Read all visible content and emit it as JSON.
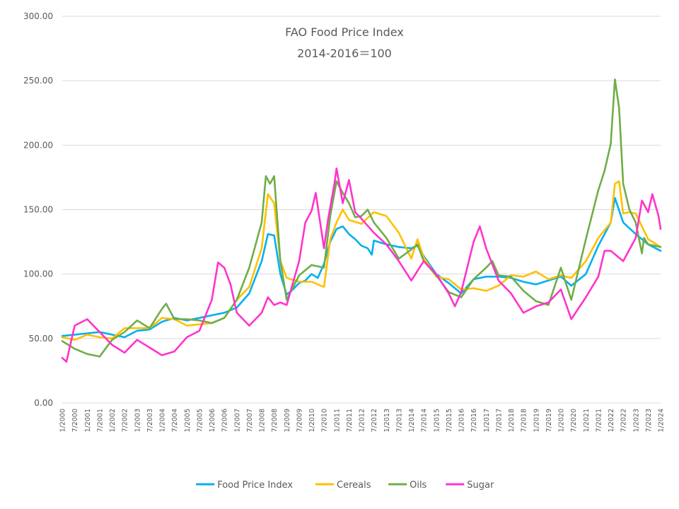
{
  "chart_data": {
    "type": "line",
    "title": "FAO Food Price Index",
    "subtitle": "2014-2016＝100",
    "xlabel": "",
    "ylabel": "",
    "ylim": [
      0,
      300
    ],
    "yticks": [
      "0.00",
      "50.00",
      "100.00",
      "150.00",
      "200.00",
      "250.00",
      "300.00"
    ],
    "grid": true,
    "legend": "bottom",
    "x_start": "1/2000",
    "x_end": "1/2024",
    "x_tick_labels": [
      "1/2000",
      "7/2000",
      "1/2001",
      "7/2001",
      "1/2002",
      "7/2002",
      "1/2003",
      "7/2003",
      "1/2004",
      "7/2004",
      "1/2005",
      "7/2005",
      "1/2006",
      "7/2006",
      "1/2007",
      "7/2007",
      "1/2008",
      "7/2008",
      "1/2009",
      "7/2009",
      "1/2010",
      "7/2010",
      "1/2011",
      "7/2011",
      "1/2012",
      "7/2012",
      "1/2013",
      "7/2013",
      "1/2014",
      "7/2014",
      "1/2015",
      "7/2015",
      "1/2016",
      "7/2016",
      "1/2017",
      "7/2017",
      "1/2018",
      "7/2018",
      "1/2019",
      "7/2019",
      "1/2020",
      "7/2020",
      "1/2021",
      "7/2021",
      "1/2022",
      "7/2022",
      "1/2023",
      "7/2023",
      "1/2024"
    ],
    "series": [
      {
        "name": "Food Price Index",
        "color": "#00b0f0",
        "points": [
          [
            "1/2000",
            52
          ],
          [
            "7/2000",
            53
          ],
          [
            "1/2001",
            54
          ],
          [
            "7/2001",
            55
          ],
          [
            "1/2002",
            53
          ],
          [
            "7/2002",
            51
          ],
          [
            "1/2003",
            56
          ],
          [
            "7/2003",
            57
          ],
          [
            "1/2004",
            63
          ],
          [
            "7/2004",
            66
          ],
          [
            "1/2005",
            64
          ],
          [
            "7/2005",
            66
          ],
          [
            "1/2006",
            68
          ],
          [
            "7/2006",
            70
          ],
          [
            "1/2007",
            74
          ],
          [
            "7/2007",
            85
          ],
          [
            "1/2008",
            110
          ],
          [
            "4/2008",
            131
          ],
          [
            "7/2008",
            130
          ],
          [
            "10/2008",
            100
          ],
          [
            "1/2009",
            84
          ],
          [
            "4/2009",
            88
          ],
          [
            "7/2009",
            93
          ],
          [
            "10/2009",
            95
          ],
          [
            "1/2010",
            100
          ],
          [
            "4/2010",
            97
          ],
          [
            "7/2010",
            108
          ],
          [
            "10/2010",
            125
          ],
          [
            "1/2011",
            135
          ],
          [
            "4/2011",
            137
          ],
          [
            "7/2011",
            131
          ],
          [
            "10/2011",
            127
          ],
          [
            "1/2012",
            122
          ],
          [
            "4/2012",
            120
          ],
          [
            "6/2012",
            115
          ],
          [
            "7/2012",
            126
          ],
          [
            "1/2013",
            123
          ],
          [
            "7/2013",
            121
          ],
          [
            "1/2014",
            120
          ],
          [
            "4/2014",
            122
          ],
          [
            "7/2014",
            114
          ],
          [
            "1/2015",
            100
          ],
          [
            "7/2015",
            93
          ],
          [
            "1/2016",
            85
          ],
          [
            "7/2016",
            96
          ],
          [
            "1/2017",
            98
          ],
          [
            "7/2017",
            98
          ],
          [
            "1/2018",
            97
          ],
          [
            "7/2018",
            94
          ],
          [
            "1/2019",
            92
          ],
          [
            "7/2019",
            95
          ],
          [
            "1/2020",
            98
          ],
          [
            "6/2020",
            91
          ],
          [
            "1/2021",
            100
          ],
          [
            "7/2021",
            122
          ],
          [
            "1/2022",
            140
          ],
          [
            "3/2022",
            159
          ],
          [
            "7/2022",
            140
          ],
          [
            "1/2023",
            131
          ],
          [
            "7/2023",
            123
          ],
          [
            "1/2024",
            118
          ]
        ]
      },
      {
        "name": "Cereals",
        "color": "#ffc000",
        "points": [
          [
            "1/2000",
            51
          ],
          [
            "7/2000",
            49
          ],
          [
            "1/2001",
            53
          ],
          [
            "7/2001",
            51
          ],
          [
            "1/2002",
            50
          ],
          [
            "7/2002",
            58
          ],
          [
            "1/2003",
            58
          ],
          [
            "7/2003",
            58
          ],
          [
            "1/2004",
            66
          ],
          [
            "7/2004",
            65
          ],
          [
            "1/2005",
            60
          ],
          [
            "7/2005",
            61
          ],
          [
            "1/2006",
            62
          ],
          [
            "7/2006",
            66
          ],
          [
            "1/2007",
            80
          ],
          [
            "7/2007",
            90
          ],
          [
            "1/2008",
            120
          ],
          [
            "4/2008",
            162
          ],
          [
            "7/2008",
            155
          ],
          [
            "10/2008",
            110
          ],
          [
            "1/2009",
            97
          ],
          [
            "7/2009",
            94
          ],
          [
            "1/2010",
            94
          ],
          [
            "7/2010",
            90
          ],
          [
            "10/2010",
            127
          ],
          [
            "1/2011",
            140
          ],
          [
            "4/2011",
            150
          ],
          [
            "7/2011",
            142
          ],
          [
            "1/2012",
            139
          ],
          [
            "7/2012",
            148
          ],
          [
            "1/2013",
            145
          ],
          [
            "7/2013",
            132
          ],
          [
            "1/2014",
            112
          ],
          [
            "4/2014",
            127
          ],
          [
            "7/2014",
            113
          ],
          [
            "1/2015",
            98
          ],
          [
            "7/2015",
            96
          ],
          [
            "1/2016",
            88
          ],
          [
            "7/2016",
            89
          ],
          [
            "1/2017",
            87
          ],
          [
            "7/2017",
            91
          ],
          [
            "1/2018",
            99
          ],
          [
            "7/2018",
            98
          ],
          [
            "1/2019",
            102
          ],
          [
            "7/2019",
            96
          ],
          [
            "1/2020",
            99
          ],
          [
            "6/2020",
            97
          ],
          [
            "1/2021",
            110
          ],
          [
            "7/2021",
            128
          ],
          [
            "1/2022",
            140
          ],
          [
            "3/2022",
            170
          ],
          [
            "5/2022",
            172
          ],
          [
            "7/2022",
            147
          ],
          [
            "10/2022",
            148
          ],
          [
            "1/2023",
            147
          ],
          [
            "7/2023",
            127
          ],
          [
            "1/2024",
            121
          ]
        ]
      },
      {
        "name": "Oils",
        "color": "#70ad47",
        "points": [
          [
            "1/2000",
            48
          ],
          [
            "7/2000",
            42
          ],
          [
            "1/2001",
            38
          ],
          [
            "7/2001",
            36
          ],
          [
            "1/2002",
            49
          ],
          [
            "7/2002",
            55
          ],
          [
            "1/2003",
            64
          ],
          [
            "7/2003",
            58
          ],
          [
            "1/2004",
            73
          ],
          [
            "3/2004",
            77
          ],
          [
            "7/2004",
            65
          ],
          [
            "1/2005",
            65
          ],
          [
            "7/2005",
            64
          ],
          [
            "1/2006",
            62
          ],
          [
            "7/2006",
            66
          ],
          [
            "1/2007",
            80
          ],
          [
            "7/2007",
            105
          ],
          [
            "1/2008",
            140
          ],
          [
            "3/2008",
            176
          ],
          [
            "5/2008",
            170
          ],
          [
            "7/2008",
            176
          ],
          [
            "10/2008",
            110
          ],
          [
            "1/2009",
            80
          ],
          [
            "7/2009",
            99
          ],
          [
            "1/2010",
            107
          ],
          [
            "7/2010",
            105
          ],
          [
            "10/2010",
            145
          ],
          [
            "1/2011",
            172
          ],
          [
            "4/2011",
            163
          ],
          [
            "7/2011",
            155
          ],
          [
            "10/2011",
            144
          ],
          [
            "1/2012",
            145
          ],
          [
            "4/2012",
            150
          ],
          [
            "7/2012",
            140
          ],
          [
            "1/2013",
            128
          ],
          [
            "7/2013",
            112
          ],
          [
            "1/2014",
            119
          ],
          [
            "4/2014",
            123
          ],
          [
            "7/2014",
            110
          ],
          [
            "1/2015",
            99
          ],
          [
            "7/2015",
            86
          ],
          [
            "1/2016",
            82
          ],
          [
            "7/2016",
            96
          ],
          [
            "1/2017",
            105
          ],
          [
            "4/2017",
            110
          ],
          [
            "7/2017",
            99
          ],
          [
            "1/2018",
            98
          ],
          [
            "7/2018",
            87
          ],
          [
            "1/2019",
            79
          ],
          [
            "7/2019",
            76
          ],
          [
            "1/2020",
            105
          ],
          [
            "6/2020",
            80
          ],
          [
            "1/2021",
            127
          ],
          [
            "7/2021",
            165
          ],
          [
            "10/2021",
            180
          ],
          [
            "1/2022",
            201
          ],
          [
            "3/2022",
            251
          ],
          [
            "5/2022",
            229
          ],
          [
            "7/2022",
            170
          ],
          [
            "10/2022",
            150
          ],
          [
            "1/2023",
            140
          ],
          [
            "4/2023",
            116
          ],
          [
            "5/2023",
            128
          ],
          [
            "7/2023",
            123
          ],
          [
            "1/2024",
            121
          ]
        ]
      },
      {
        "name": "Sugar",
        "color": "#ff33cc",
        "points": [
          [
            "1/2000",
            35
          ],
          [
            "3/2000",
            32
          ],
          [
            "7/2000",
            60
          ],
          [
            "1/2001",
            65
          ],
          [
            "7/2001",
            55
          ],
          [
            "1/2002",
            45
          ],
          [
            "7/2002",
            39
          ],
          [
            "1/2003",
            49
          ],
          [
            "7/2003",
            43
          ],
          [
            "1/2004",
            37
          ],
          [
            "7/2004",
            40
          ],
          [
            "1/2005",
            51
          ],
          [
            "7/2005",
            56
          ],
          [
            "1/2006",
            80
          ],
          [
            "4/2006",
            109
          ],
          [
            "7/2006",
            105
          ],
          [
            "10/2006",
            92
          ],
          [
            "1/2007",
            70
          ],
          [
            "7/2007",
            60
          ],
          [
            "1/2008",
            70
          ],
          [
            "4/2008",
            82
          ],
          [
            "7/2008",
            76
          ],
          [
            "10/2008",
            78
          ],
          [
            "1/2009",
            76
          ],
          [
            "7/2009",
            110
          ],
          [
            "10/2009",
            140
          ],
          [
            "1/2010",
            149
          ],
          [
            "3/2010",
            163
          ],
          [
            "7/2010",
            120
          ],
          [
            "9/2010",
            143
          ],
          [
            "12/2010",
            170
          ],
          [
            "1/2011",
            182
          ],
          [
            "4/2011",
            155
          ],
          [
            "7/2011",
            173
          ],
          [
            "10/2011",
            148
          ],
          [
            "1/2012",
            143
          ],
          [
            "7/2012",
            132
          ],
          [
            "1/2013",
            123
          ],
          [
            "7/2013",
            110
          ],
          [
            "1/2014",
            95
          ],
          [
            "7/2014",
            110
          ],
          [
            "1/2015",
            100
          ],
          [
            "7/2015",
            85
          ],
          [
            "10/2015",
            75
          ],
          [
            "1/2016",
            86
          ],
          [
            "7/2016",
            125
          ],
          [
            "10/2016",
            137
          ],
          [
            "1/2017",
            120
          ],
          [
            "7/2017",
            95
          ],
          [
            "1/2018",
            85
          ],
          [
            "7/2018",
            70
          ],
          [
            "1/2019",
            75
          ],
          [
            "7/2019",
            78
          ],
          [
            "1/2020",
            88
          ],
          [
            "6/2020",
            65
          ],
          [
            "1/2021",
            82
          ],
          [
            "7/2021",
            98
          ],
          [
            "10/2021",
            118
          ],
          [
            "1/2022",
            118
          ],
          [
            "7/2022",
            110
          ],
          [
            "1/2023",
            128
          ],
          [
            "4/2023",
            157
          ],
          [
            "7/2023",
            148
          ],
          [
            "9/2023",
            162
          ],
          [
            "12/2023",
            145
          ],
          [
            "1/2024",
            135
          ]
        ]
      }
    ]
  }
}
